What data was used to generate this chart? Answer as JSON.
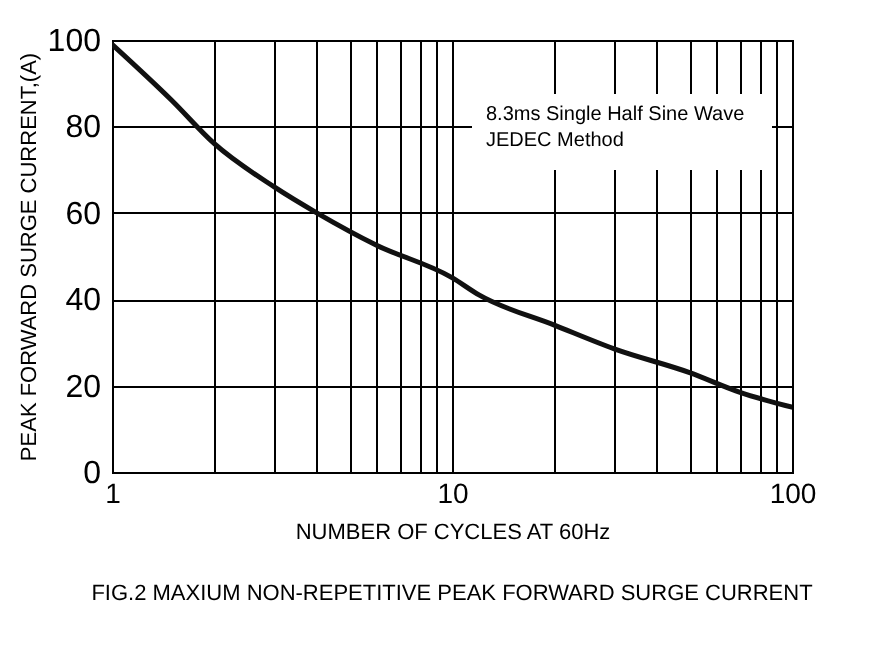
{
  "chart_data": {
    "type": "line",
    "title": "FIG.2 MAXIUM NON-REPETITIVE PEAK\nFORWARD SURGE CURRENT",
    "xlabel": "NUMBER OF CYCLES AT 60Hz",
    "ylabel": "PEAK FORWARD SURGE CURRENT,(A)",
    "annotations": [
      "8.3ms Single Half Sine Wave\nJEDEC Method"
    ],
    "log": "x",
    "grid": true,
    "marker": "none",
    "line_style": "solid",
    "xlim": [
      1,
      100
    ],
    "ylim": [
      0,
      100
    ],
    "xticks": [
      1,
      {
        "value": 2,
        "label": null
      },
      {
        "value": 3,
        "label": null
      },
      {
        "value": 4,
        "label": null
      },
      {
        "value": 5,
        "label": null
      },
      {
        "value": 6,
        "label": null
      },
      {
        "value": 7,
        "label": null
      },
      {
        "value": 8,
        "label": null
      },
      {
        "value": 9,
        "label": null
      },
      10,
      {
        "value": 20,
        "label": null
      },
      {
        "value": 30,
        "label": null
      },
      {
        "value": 40,
        "label": null
      },
      {
        "value": 50,
        "label": null
      },
      {
        "value": 60,
        "label": null
      },
      {
        "value": 70,
        "label": null
      },
      {
        "value": 80,
        "label": null
      },
      {
        "value": 90,
        "label": null
      },
      100
    ],
    "yticks": [
      0,
      20,
      40,
      60,
      80,
      100
    ],
    "series": [
      {
        "color": "#111111",
        "x": [
          1,
          1.5,
          2,
          3,
          4,
          6,
          10,
          12,
          20,
          30,
          50,
          70,
          100
        ],
        "values": [
          99,
          86,
          76,
          66,
          60,
          52.5,
          45,
          41,
          34,
          28.5,
          23,
          18.5,
          15
        ]
      }
    ]
  }
}
